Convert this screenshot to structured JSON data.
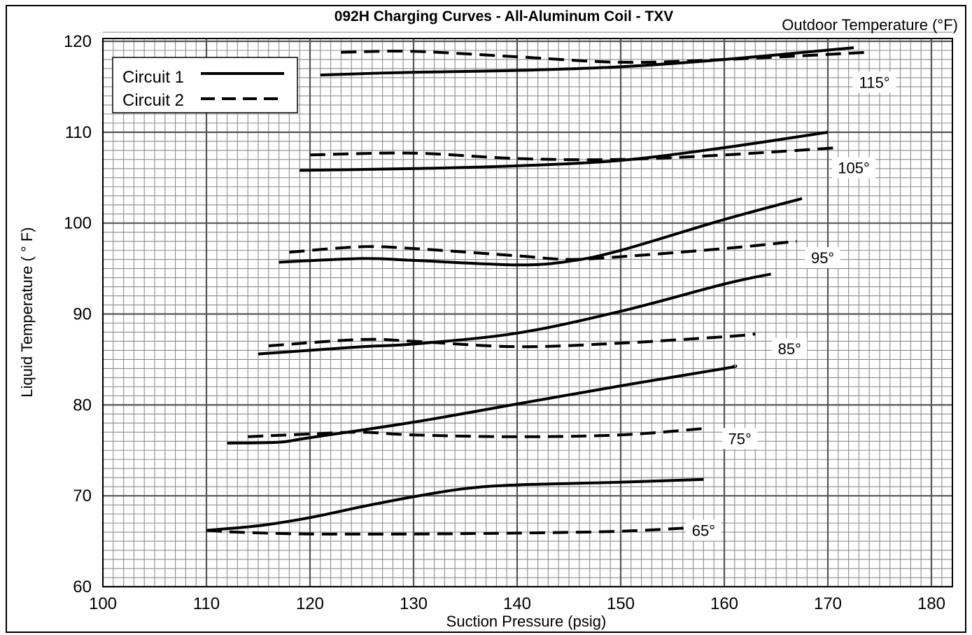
{
  "chart_data": {
    "type": "line",
    "title": "092H Charging Curves - All-Aluminum Coil - TXV",
    "subtitle": "Outdoor Temperature (°F)",
    "xlabel": "Suction Pressure (psig)",
    "ylabel": "Liquid Temperature (   ° F)",
    "xlim": [
      100,
      182
    ],
    "ylim": [
      60,
      121
    ],
    "x_ticks": [
      "100",
      "110",
      "120",
      "130",
      "140",
      "150",
      "160",
      "170",
      "180"
    ],
    "y_ticks": [
      "60",
      "70",
      "80",
      "90",
      "100",
      "110",
      "120"
    ],
    "grid": true,
    "legend_position": "top-left",
    "legend": [
      {
        "name": "Circuit 1",
        "style": "solid"
      },
      {
        "name": "Circuit 2",
        "style": "dashed"
      }
    ],
    "curve_labels": [
      {
        "text": "115°",
        "x": 174.5,
        "y": 115.5
      },
      {
        "text": "105°",
        "x": 172.5,
        "y": 106.1
      },
      {
        "text": "95°",
        "x": 169.5,
        "y": 96.2
      },
      {
        "text": "85°",
        "x": 166.3,
        "y": 86.2
      },
      {
        "text": "75°",
        "x": 161.5,
        "y": 76.3
      },
      {
        "text": "65°",
        "x": 158.0,
        "y": 66.2
      }
    ],
    "series": [
      {
        "circuit": "Circuit 1",
        "outdoor": "115°",
        "style": "solid",
        "x": [
          121,
          130,
          140,
          150,
          160,
          172.5
        ],
        "y": [
          116.3,
          116.6,
          116.8,
          117.2,
          118.0,
          119.3
        ]
      },
      {
        "circuit": "Circuit 2",
        "outdoor": "115°",
        "style": "dashed",
        "x": [
          123,
          130,
          140,
          150,
          160,
          174
        ],
        "y": [
          118.8,
          118.9,
          118.3,
          117.7,
          118.0,
          118.8
        ]
      },
      {
        "circuit": "Circuit 1",
        "outdoor": "105°",
        "style": "solid",
        "x": [
          119,
          130,
          140,
          150,
          160,
          170
        ],
        "y": [
          105.8,
          106.0,
          106.3,
          106.9,
          108.3,
          110.0
        ]
      },
      {
        "circuit": "Circuit 2",
        "outdoor": "105°",
        "style": "dashed",
        "x": [
          120,
          130,
          140,
          150,
          160,
          171
        ],
        "y": [
          107.5,
          107.7,
          107.1,
          107.0,
          107.5,
          108.3
        ]
      },
      {
        "circuit": "Circuit 1",
        "outdoor": "95°",
        "style": "solid",
        "x": [
          117,
          125,
          130,
          140,
          145,
          150,
          160,
          167.5
        ],
        "y": [
          95.7,
          96.1,
          95.9,
          95.4,
          95.8,
          97.0,
          100.4,
          102.7
        ]
      },
      {
        "circuit": "Circuit 2",
        "outdoor": "95°",
        "style": "dashed",
        "x": [
          118,
          125,
          130,
          140,
          145,
          150,
          160,
          167
        ],
        "y": [
          96.8,
          97.4,
          97.2,
          96.4,
          96.0,
          96.3,
          97.2,
          98.0
        ]
      },
      {
        "circuit": "Circuit 1",
        "outdoor": "85°",
        "style": "solid",
        "x": [
          115,
          125,
          130,
          140,
          150,
          160,
          164.5
        ],
        "y": [
          85.6,
          86.4,
          86.7,
          87.9,
          90.3,
          93.3,
          94.4
        ]
      },
      {
        "circuit": "Circuit 2",
        "outdoor": "85°",
        "style": "dashed",
        "x": [
          116,
          125,
          130,
          140,
          150,
          160,
          163
        ],
        "y": [
          86.5,
          87.2,
          87.0,
          86.4,
          86.8,
          87.5,
          87.8
        ]
      },
      {
        "circuit": "Circuit 1",
        "outdoor": "75°",
        "style": "solid",
        "x": [
          112,
          117,
          120,
          130,
          140,
          150,
          160,
          161
        ],
        "y": [
          75.8,
          75.9,
          76.4,
          78.1,
          80.1,
          82.1,
          84.0,
          84.3
        ]
      },
      {
        "circuit": "Circuit 2",
        "outdoor": "75°",
        "style": "dashed",
        "x": [
          114,
          120,
          125,
          130,
          140,
          150,
          158
        ],
        "y": [
          76.5,
          76.8,
          77.0,
          76.7,
          76.5,
          76.7,
          77.4
        ]
      },
      {
        "circuit": "Circuit 1",
        "outdoor": "65°",
        "style": "solid",
        "x": [
          110,
          115,
          120,
          125,
          130,
          135,
          140,
          150,
          158
        ],
        "y": [
          66.2,
          66.7,
          67.6,
          68.8,
          69.9,
          70.8,
          71.2,
          71.5,
          71.8
        ]
      },
      {
        "circuit": "Circuit 2",
        "outdoor": "65°",
        "style": "dashed",
        "x": [
          110,
          113,
          120,
          130,
          140,
          150,
          157
        ],
        "y": [
          66.2,
          66.0,
          65.8,
          65.8,
          65.9,
          66.1,
          66.5
        ]
      }
    ]
  }
}
